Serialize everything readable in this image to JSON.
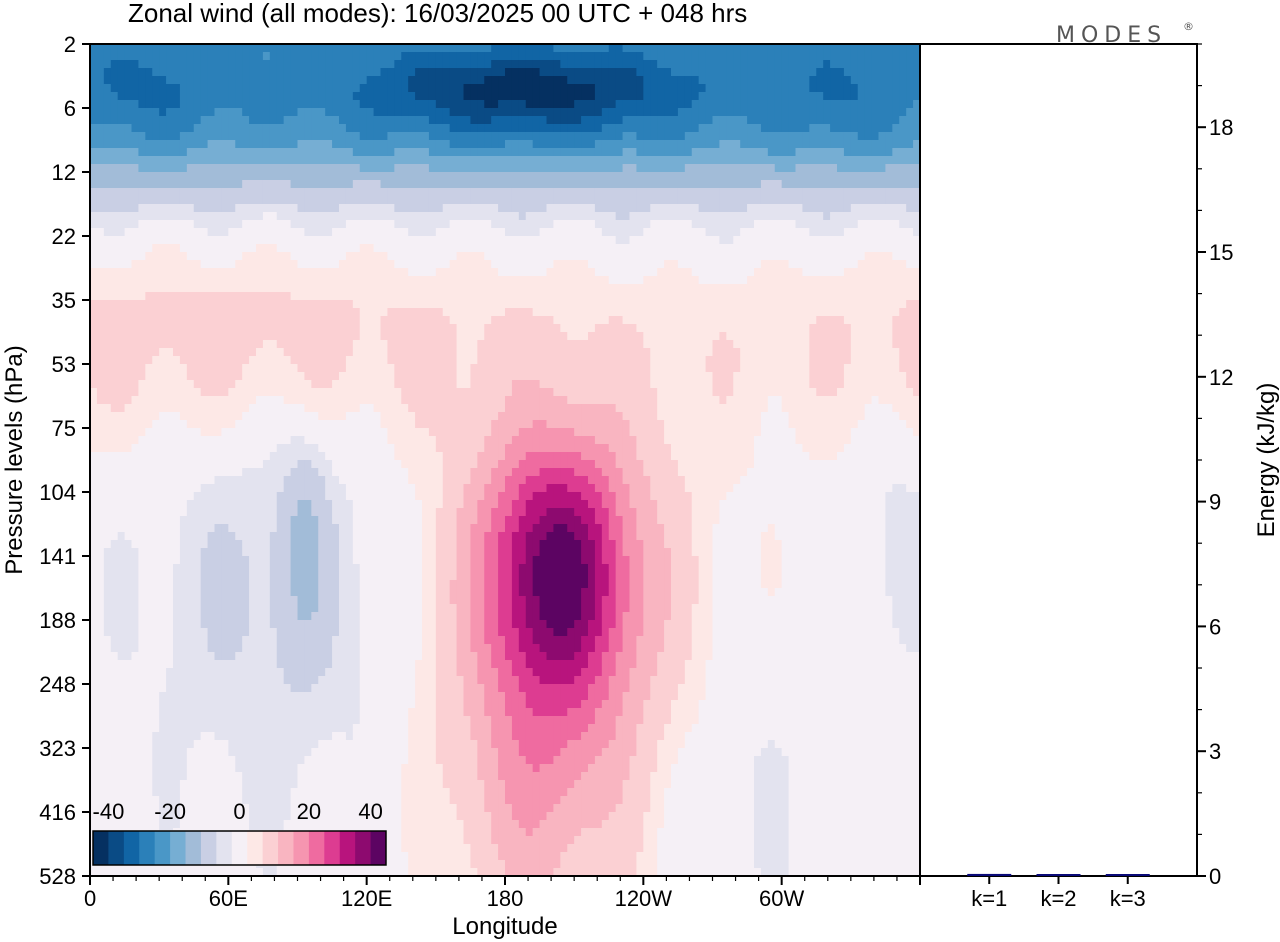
{
  "chart_data": {
    "type": "heatmap",
    "title": "Zonal wind (all modes):  16/03/2025  00 UTC  + 048 hrs",
    "brand": "MODES",
    "brand_mark": "®",
    "xlabel": "Longitude",
    "ylabel": "Pressure levels (hPa)",
    "y2label": "Energy (kJ/kg)",
    "x_ticks": [
      "0",
      "60E",
      "120E",
      "180",
      "120W",
      "60W"
    ],
    "x_tick_values": [
      0,
      60,
      120,
      180,
      240,
      300
    ],
    "xlim": [
      0,
      360
    ],
    "y_levels": [
      2,
      6,
      12,
      22,
      35,
      53,
      75,
      104,
      141,
      188,
      248,
      323,
      416,
      528
    ],
    "energy_axis": {
      "ylim": [
        0,
        20
      ],
      "ticks": [
        0,
        3,
        6,
        9,
        12,
        15,
        18
      ]
    },
    "energy_bars": {
      "categories": [
        "k=1",
        "k=2",
        "k=3"
      ],
      "values": [
        0.05,
        0.03,
        0.04
      ],
      "color": "#0a0a78"
    },
    "colorbar": {
      "labels": [
        "-40",
        "-20",
        "0",
        "20",
        "40"
      ],
      "label_values": [
        -40,
        -20,
        0,
        20,
        40
      ],
      "levels": [
        -45,
        -40,
        -35,
        -30,
        -25,
        -20,
        -15,
        -10,
        -5,
        -2,
        2,
        5,
        10,
        15,
        20,
        25,
        30,
        35,
        40,
        45
      ],
      "colors": [
        "#053061",
        "#0a4b85",
        "#1165a5",
        "#2b80b9",
        "#4a97c7",
        "#76aed3",
        "#a2bcd8",
        "#c9cfe4",
        "#e3e3ef",
        "#f5f0f6",
        "#fde8e6",
        "#fbd0d3",
        "#f9b5c1",
        "#f695b0",
        "#ef6ba0",
        "#dd3c91",
        "#b8147d",
        "#8d0a6f",
        "#5c0462"
      ]
    },
    "field_features": [
      {
        "name": "stratospheric easterly jet core",
        "lon_range": [
          115,
          270
        ],
        "pressure_range": [
          2,
          9
        ],
        "value": -42
      },
      {
        "name": "upper easterlies",
        "lon_range": [
          0,
          360
        ],
        "pressure_range": [
          2,
          14
        ],
        "value": -25
      },
      {
        "name": "westerly jet core",
        "lon_range": [
          180,
          235
        ],
        "pressure_range": [
          104,
          200
        ],
        "value": 32
      },
      {
        "name": "westerly jet",
        "lon_range": [
          165,
          255
        ],
        "pressure_range": [
          80,
          360
        ],
        "value": 15
      },
      {
        "name": "weak westerlies",
        "lon_range": [
          0,
          360
        ],
        "pressure_range": [
          28,
          70
        ],
        "value": 6
      },
      {
        "name": "weak easterlies",
        "lon_range": [
          0,
          160
        ],
        "pressure_range": [
          85,
          350
        ],
        "value": -5
      }
    ]
  }
}
